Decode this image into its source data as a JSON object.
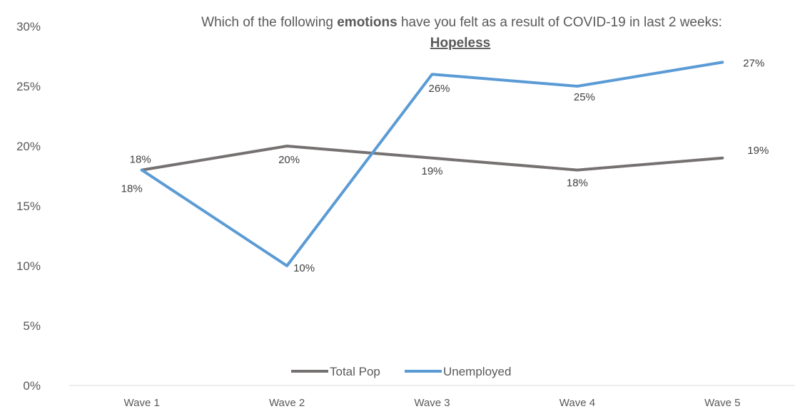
{
  "chart_data": {
    "type": "line",
    "title_parts": [
      "Which of the following ",
      "emotions",
      " have you felt as a result of COVID-19 in last 2 weeks:"
    ],
    "subtitle": "Hopeless",
    "categories": [
      "Wave 1",
      "Wave 2",
      "Wave 3",
      "Wave 4",
      "Wave 5"
    ],
    "y_ticks": [
      "0%",
      "5%",
      "10%",
      "15%",
      "20%",
      "25%",
      "30%"
    ],
    "ylim": [
      0,
      30
    ],
    "grid": false,
    "legend_position": "bottom",
    "series": [
      {
        "name": "Total Pop",
        "color": "#767171",
        "values": [
          18,
          20,
          19,
          18,
          19
        ],
        "labels": [
          "18%",
          "20%",
          "19%",
          "18%",
          "19%"
        ]
      },
      {
        "name": "Unemployed",
        "color": "#5B9BD5",
        "values": [
          18,
          10,
          26,
          25,
          27
        ],
        "labels": [
          "18%",
          "10%",
          "26%",
          "25%",
          "27%"
        ]
      }
    ]
  }
}
